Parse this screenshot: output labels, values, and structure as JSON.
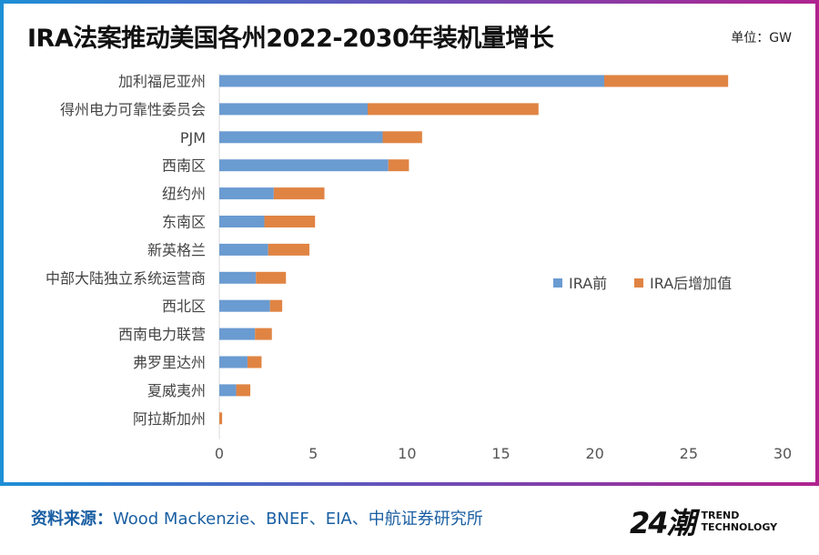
{
  "title": "IRA法案推动美国各州2022-2030年装机量增长",
  "unit": "单位：GW",
  "footer": {
    "label": "资料来源：",
    "text": "Wood Mackenzie、BNEF、EIA、中航证券研究所"
  },
  "logo": {
    "main": "24潮",
    "line1": "TREND",
    "line2": "TECHNOLOGY"
  },
  "colors": {
    "before": "#6a9bd1",
    "after": "#e08443"
  },
  "chart_data": {
    "type": "bar",
    "orientation": "horizontal",
    "stacked": true,
    "categories": [
      "加利福尼亚州",
      "得州电力可靠性委员会",
      "PJM",
      "西南区",
      "纽约州",
      "东南区",
      "新英格兰",
      "中部大陆独立系统运营商",
      "西北区",
      "西南电力联营",
      "弗罗里达州",
      "夏威夷州",
      "阿拉斯加州"
    ],
    "series": [
      {
        "name": "IRA前",
        "values": [
          20.5,
          7.9,
          8.7,
          9.0,
          2.9,
          2.4,
          2.6,
          1.95,
          2.7,
          1.9,
          1.5,
          0.9,
          0
        ]
      },
      {
        "name": "IRA后增加值",
        "values": [
          6.6,
          9.1,
          2.1,
          1.1,
          2.7,
          2.7,
          2.2,
          1.6,
          0.65,
          0.9,
          0.75,
          0.75,
          0.15
        ]
      }
    ],
    "xlim": [
      0,
      30
    ],
    "xticks": [
      "0",
      "5",
      "10",
      "15",
      "20",
      "25",
      "30"
    ],
    "grid": false,
    "legend": "right"
  }
}
